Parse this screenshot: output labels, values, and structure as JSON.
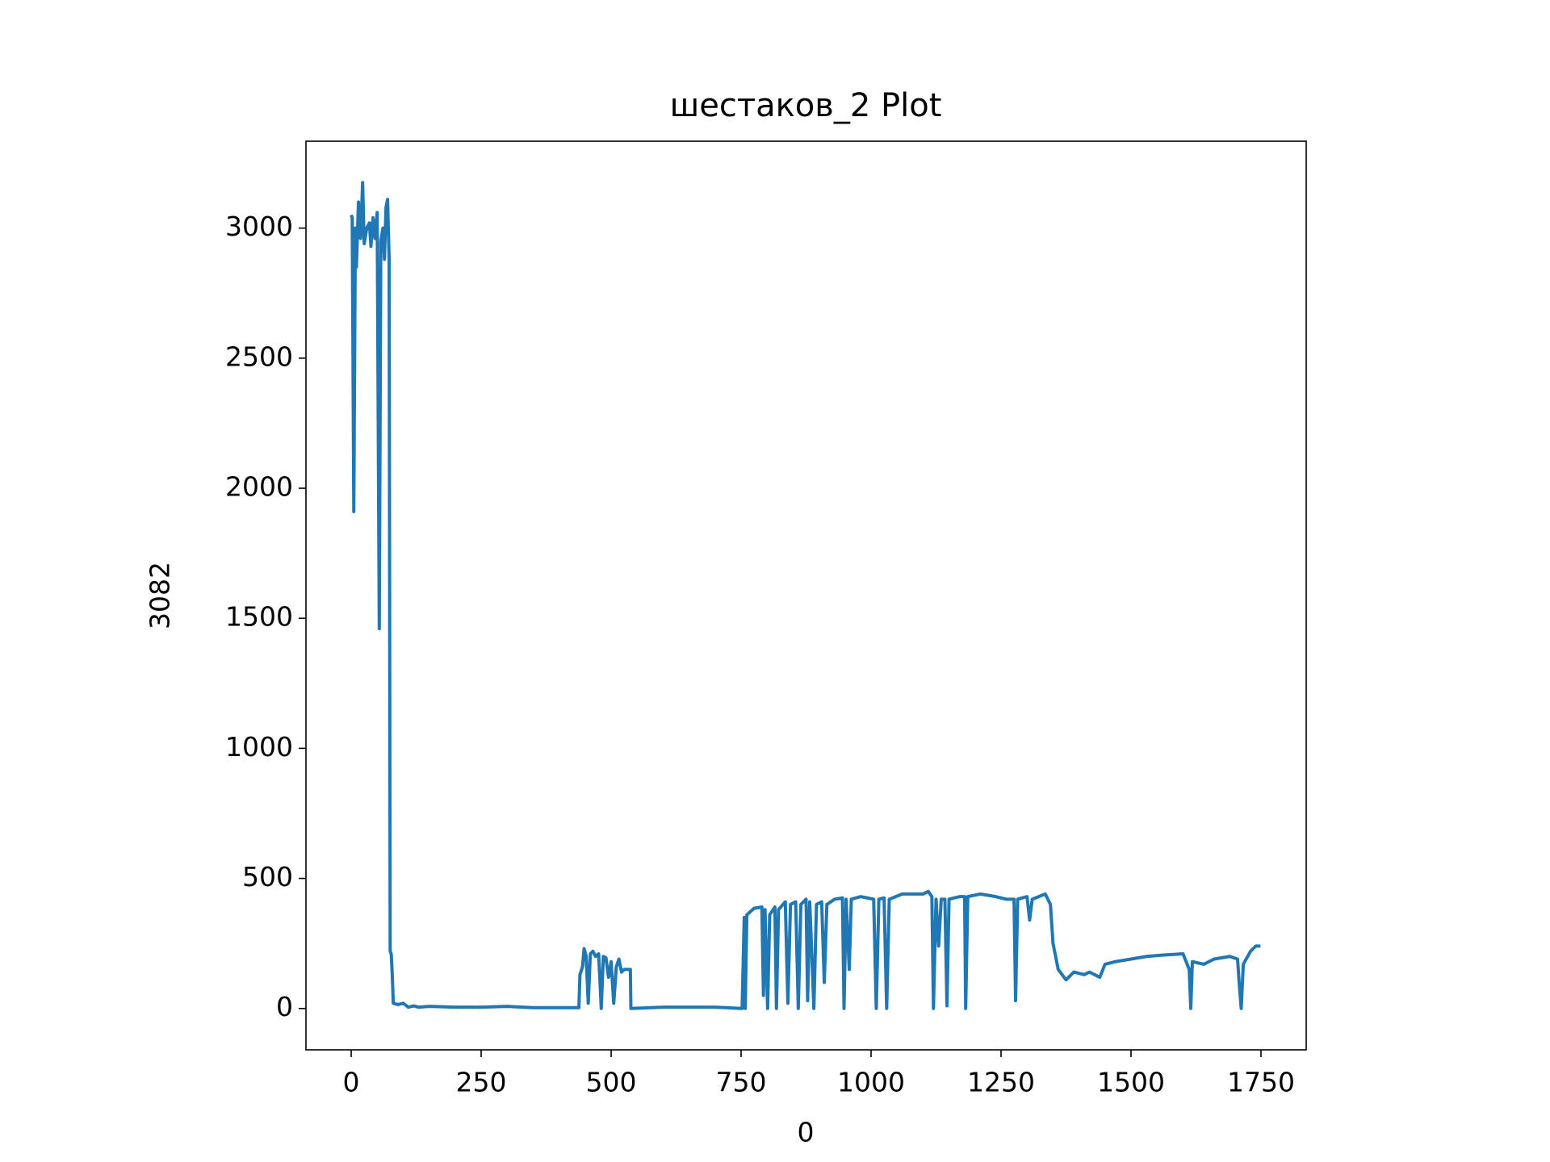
{
  "chart_data": {
    "type": "line",
    "title": "шестаков_2 Plot",
    "x_label": "0",
    "y_label": "3082",
    "color": "#1f77b4",
    "x": [
      0,
      2,
      5,
      8,
      10,
      14,
      18,
      22,
      25,
      30,
      35,
      38,
      42,
      46,
      50,
      54,
      57,
      61,
      64,
      67,
      70,
      73,
      75,
      77,
      79,
      81,
      90,
      100,
      110,
      120,
      130,
      150,
      200,
      250,
      300,
      350,
      400,
      438,
      440,
      445,
      448,
      452,
      456,
      460,
      465,
      470,
      476,
      481,
      485,
      490,
      495,
      500,
      505,
      510,
      515,
      520,
      525,
      537,
      538,
      600,
      650,
      700,
      752,
      756,
      758,
      761,
      775,
      790,
      793,
      796,
      801,
      805,
      815,
      818,
      822,
      835,
      840,
      845,
      855,
      860,
      865,
      875,
      878,
      882,
      890,
      895,
      905,
      910,
      915,
      930,
      945,
      948,
      952,
      958,
      962,
      980,
      1005,
      1010,
      1015,
      1025,
      1030,
      1035,
      1060,
      1080,
      1100,
      1110,
      1117,
      1120,
      1125,
      1130,
      1135,
      1142,
      1146,
      1150,
      1170,
      1180,
      1182,
      1186,
      1210,
      1240,
      1260,
      1275,
      1278,
      1282,
      1300,
      1305,
      1310,
      1335,
      1345,
      1350,
      1360,
      1375,
      1390,
      1410,
      1420,
      1440,
      1450,
      1470,
      1500,
      1530,
      1560,
      1600,
      1612,
      1615,
      1618,
      1640,
      1660,
      1690,
      1705,
      1708,
      1712,
      1716,
      1730,
      1740,
      1749
    ],
    "values": [
      3050,
      3040,
      1910,
      3000,
      2850,
      3100,
      2960,
      3175,
      2940,
      3000,
      3020,
      2930,
      3040,
      2960,
      3060,
      1460,
      2950,
      3000,
      2880,
      3080,
      3110,
      2880,
      220,
      210,
      130,
      20,
      15,
      20,
      5,
      10,
      5,
      8,
      5,
      5,
      8,
      3,
      3,
      3,
      130,
      160,
      230,
      200,
      20,
      210,
      220,
      200,
      210,
      0,
      200,
      195,
      120,
      180,
      20,
      160,
      190,
      140,
      150,
      150,
      0,
      5,
      5,
      5,
      0,
      350,
      0,
      360,
      385,
      390,
      50,
      380,
      0,
      360,
      390,
      0,
      380,
      410,
      20,
      400,
      410,
      0,
      400,
      420,
      30,
      410,
      0,
      400,
      410,
      100,
      400,
      420,
      425,
      0,
      420,
      150,
      420,
      430,
      420,
      0,
      420,
      425,
      0,
      420,
      440,
      440,
      440,
      450,
      430,
      0,
      420,
      240,
      420,
      420,
      10,
      420,
      430,
      430,
      0,
      430,
      440,
      430,
      420,
      420,
      30,
      420,
      430,
      340,
      420,
      440,
      400,
      250,
      150,
      110,
      140,
      130,
      140,
      120,
      170,
      180,
      190,
      200,
      205,
      210,
      150,
      0,
      180,
      170,
      190,
      200,
      190,
      100,
      0,
      170,
      220,
      240,
      240
    ],
    "xlim": [
      -87,
      1837
    ],
    "ylim": [
      -159,
      3334
    ],
    "xticks": [
      0,
      250,
      500,
      750,
      1000,
      1250,
      1500,
      1750
    ],
    "yticks": [
      0,
      500,
      1000,
      1500,
      2000,
      2500,
      3000
    ]
  }
}
